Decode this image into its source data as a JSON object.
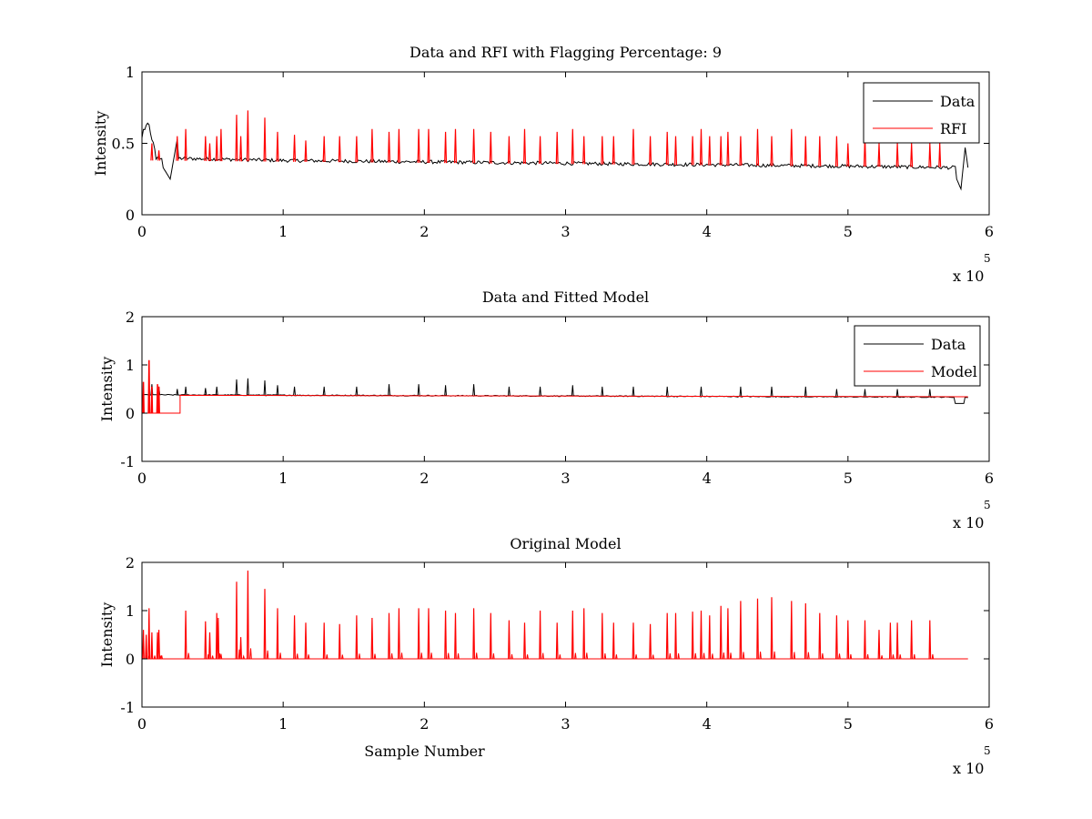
{
  "figure": {
    "background": "#ffffff"
  },
  "chart_data": [
    {
      "type": "line",
      "title": "Data and RFI with Flagging Percentage: 9",
      "xlabel": "",
      "ylabel": "Intensity",
      "xlim": [
        0,
        600000
      ],
      "ylim": [
        0,
        1
      ],
      "xticks": [
        0,
        1,
        2,
        3,
        4,
        5,
        6
      ],
      "xtick_labels": [
        "0",
        "1",
        "2",
        "3",
        "4",
        "5",
        "6"
      ],
      "x_multiplier_label": "x 10",
      "x_multiplier_exponent": "5",
      "yticks": [
        0,
        0.5,
        1
      ],
      "ytick_labels": [
        "0",
        "0.5",
        "1"
      ],
      "legend": "top-right",
      "series": [
        {
          "name": "Data",
          "color": "#000000",
          "baseline_x": [
            0,
            100000,
            200000,
            300000,
            400000,
            500000,
            575000
          ],
          "baseline_y": [
            0.4,
            0.38,
            0.37,
            0.36,
            0.35,
            0.34,
            0.33
          ],
          "features": {
            "start_peak": {
              "x": [
                0,
                5000,
                10000
              ],
              "y": [
                0.55,
                0.64,
                0.39
              ]
            },
            "dip_1": {
              "x": [
                15000,
                20000,
                25000
              ],
              "y": [
                0.33,
                0.25,
                0.53
              ]
            },
            "dip_2": {
              "x": [
                577000,
                580000,
                583000,
                585000
              ],
              "y": [
                0.25,
                0.18,
                0.47,
                0.33
              ]
            }
          },
          "x_end": 585000
        },
        {
          "name": "RFI",
          "color": "#ff0000",
          "spikes_x": [
            7000,
            12000,
            25000,
            31000,
            45000,
            48000,
            53000,
            56000,
            67000,
            70000,
            75000,
            87000,
            96000,
            108000,
            116000,
            129000,
            140000,
            152000,
            163000,
            175000,
            182000,
            196000,
            203000,
            215000,
            222000,
            235000,
            247000,
            260000,
            271000,
            282000,
            294000,
            305000,
            313000,
            326000,
            334000,
            348000,
            360000,
            372000,
            378000,
            390000,
            396000,
            402000,
            410000,
            415000,
            424000,
            436000,
            446000,
            460000,
            470000,
            480000,
            492000,
            500000,
            512000,
            522000,
            535000,
            545000,
            558000,
            565000
          ],
          "spikes_y": [
            0.5,
            0.45,
            0.55,
            0.6,
            0.55,
            0.5,
            0.55,
            0.6,
            0.7,
            0.55,
            0.73,
            0.68,
            0.58,
            0.56,
            0.52,
            0.55,
            0.55,
            0.55,
            0.6,
            0.58,
            0.6,
            0.6,
            0.6,
            0.58,
            0.6,
            0.6,
            0.58,
            0.55,
            0.6,
            0.55,
            0.58,
            0.6,
            0.55,
            0.55,
            0.55,
            0.6,
            0.55,
            0.58,
            0.55,
            0.55,
            0.6,
            0.55,
            0.55,
            0.58,
            0.55,
            0.6,
            0.55,
            0.6,
            0.55,
            0.55,
            0.55,
            0.5,
            0.55,
            0.5,
            0.5,
            0.5,
            0.5,
            0.5
          ]
        }
      ]
    },
    {
      "type": "line",
      "title": "Data and Fitted Model",
      "xlabel": "",
      "ylabel": "Intensity",
      "xlim": [
        0,
        600000
      ],
      "ylim": [
        -1,
        2
      ],
      "xticks": [
        0,
        1,
        2,
        3,
        4,
        5,
        6
      ],
      "xtick_labels": [
        "0",
        "1",
        "2",
        "3",
        "4",
        "5",
        "6"
      ],
      "x_multiplier_label": "x 10",
      "x_multiplier_exponent": "5",
      "yticks": [
        -1,
        0,
        1,
        2
      ],
      "ytick_labels": [
        "-1",
        "0",
        "1",
        "2"
      ],
      "legend": "top-right",
      "series": [
        {
          "name": "Data",
          "color": "#000000",
          "baseline_y": 0.38,
          "spikes_x": [
            7000,
            12000,
            25000,
            31000,
            45000,
            53000,
            67000,
            75000,
            87000,
            96000,
            108000,
            129000,
            152000,
            175000,
            196000,
            215000,
            235000,
            260000,
            282000,
            305000,
            326000,
            348000,
            372000,
            396000,
            424000,
            446000,
            470000,
            492000,
            512000,
            535000,
            558000
          ],
          "spikes_y": [
            0.6,
            0.55,
            0.5,
            0.55,
            0.52,
            0.55,
            0.7,
            0.72,
            0.68,
            0.58,
            0.55,
            0.55,
            0.55,
            0.6,
            0.6,
            0.58,
            0.6,
            0.55,
            0.55,
            0.58,
            0.55,
            0.55,
            0.55,
            0.55,
            0.55,
            0.55,
            0.55,
            0.5,
            0.5,
            0.5,
            0.5
          ],
          "x_end": 585000
        },
        {
          "name": "Model",
          "color": "#ff0000",
          "baseline_y": 0.37,
          "start_block": {
            "x": [
              0,
              27000
            ],
            "y": 0.0
          },
          "early_spikes_x": [
            1000,
            5000,
            7000,
            11000,
            12000
          ],
          "early_spikes_y": [
            0.65,
            1.1,
            0.55,
            0.6,
            0.55
          ],
          "x_end": 585000
        }
      ]
    },
    {
      "type": "line",
      "title": "Original Model",
      "xlabel": "Sample Number",
      "ylabel": "Intensity",
      "xlim": [
        0,
        600000
      ],
      "ylim": [
        -1,
        2
      ],
      "xticks": [
        0,
        1,
        2,
        3,
        4,
        5,
        6
      ],
      "xtick_labels": [
        "0",
        "1",
        "2",
        "3",
        "4",
        "5",
        "6"
      ],
      "x_multiplier_label": "x 10",
      "x_multiplier_exponent": "5",
      "yticks": [
        -1,
        0,
        1,
        2
      ],
      "ytick_labels": [
        "-1",
        "0",
        "1",
        "2"
      ],
      "series": [
        {
          "color": "#ff0000",
          "baseline_y": 0.0,
          "x_end": 585000,
          "spikes_x": [
            1000,
            3000,
            5000,
            7000,
            11000,
            12000,
            31000,
            45000,
            48000,
            53000,
            54000,
            67000,
            70000,
            75000,
            87000,
            96000,
            108000,
            116000,
            129000,
            140000,
            152000,
            163000,
            175000,
            182000,
            196000,
            203000,
            215000,
            222000,
            235000,
            247000,
            260000,
            271000,
            282000,
            294000,
            305000,
            313000,
            326000,
            334000,
            348000,
            360000,
            372000,
            378000,
            390000,
            396000,
            402000,
            410000,
            415000,
            424000,
            436000,
            446000,
            460000,
            470000,
            480000,
            492000,
            500000,
            512000,
            522000,
            530000,
            535000,
            545000,
            558000
          ],
          "spikes_y": [
            0.6,
            0.5,
            1.05,
            0.55,
            0.55,
            0.6,
            1.0,
            0.78,
            0.55,
            0.95,
            0.85,
            1.6,
            0.45,
            1.83,
            1.45,
            1.05,
            0.9,
            0.75,
            0.75,
            0.72,
            0.9,
            0.85,
            0.95,
            1.05,
            1.05,
            1.05,
            1.0,
            0.95,
            1.05,
            0.95,
            0.8,
            0.75,
            1.0,
            0.75,
            1.0,
            1.05,
            0.95,
            0.75,
            0.75,
            0.72,
            0.95,
            0.95,
            0.98,
            1.0,
            0.9,
            1.1,
            1.05,
            1.2,
            1.25,
            1.28,
            1.2,
            1.15,
            0.95,
            0.9,
            0.8,
            0.8,
            0.6,
            0.75,
            0.75,
            0.8,
            0.8
          ]
        }
      ]
    }
  ]
}
